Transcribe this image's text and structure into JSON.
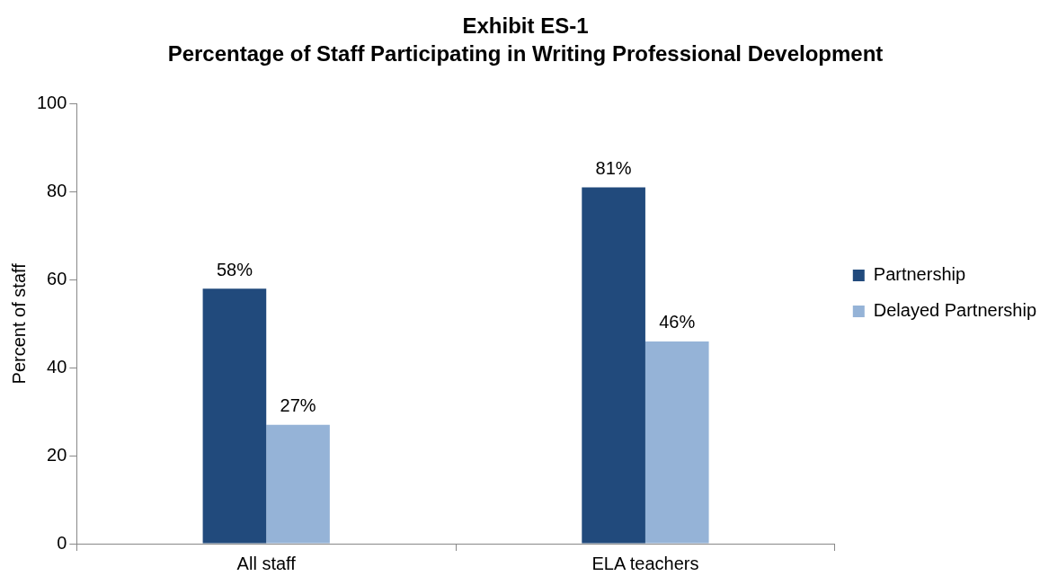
{
  "chart_data": {
    "type": "bar",
    "title": "Exhibit ES-1",
    "subtitle": "Percentage of Staff Participating in Writing Professional Development",
    "ylabel": "Percent of staff",
    "categories": [
      "All staff",
      "ELA teachers"
    ],
    "series": [
      {
        "name": "Partnership",
        "color": "#214a7c",
        "values": [
          58,
          81
        ],
        "value_labels": [
          "58%",
          "81%"
        ]
      },
      {
        "name": "Delayed Partnership",
        "color": "#95b3d7",
        "values": [
          27,
          46
        ],
        "value_labels": [
          "27%",
          "46%"
        ]
      }
    ],
    "ylim": [
      0,
      100
    ],
    "yticks": [
      0,
      20,
      40,
      60,
      80,
      100
    ],
    "grid": false,
    "legend": "right"
  }
}
